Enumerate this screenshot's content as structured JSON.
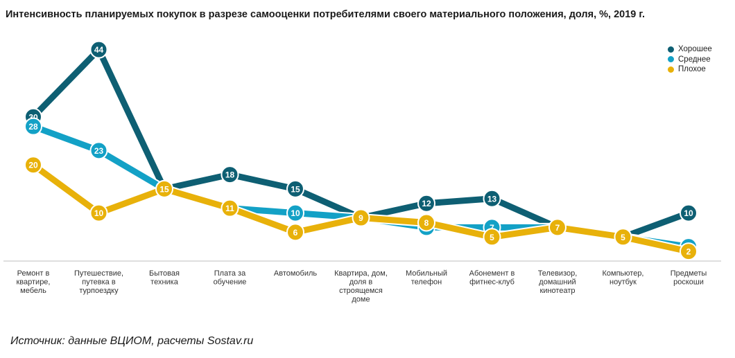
{
  "chart_data": {
    "type": "line",
    "title": "Интенсивность планируемых покупок в разрезе самооценки потребителями своего материального положения, доля, %, 2019 г.",
    "categories": [
      [
        "Ремонт в",
        "квартире,",
        "мебель"
      ],
      [
        "Путешествие,",
        "путевка в",
        "турпоездку"
      ],
      [
        "Бытовая",
        "техника"
      ],
      [
        "Плата за",
        "обучение"
      ],
      [
        "Автомобиль"
      ],
      [
        "Квартира, дом,",
        "доля в",
        "строящемся",
        "доме"
      ],
      [
        "Мобильный",
        "телефон"
      ],
      [
        "Абонемент в",
        "фитнес-клуб"
      ],
      [
        "Телевизор,",
        "домашний",
        "кинотеатр"
      ],
      [
        "Компьютер,",
        "ноутбук"
      ],
      [
        "Предметы",
        "роскоши"
      ]
    ],
    "series": [
      {
        "name": "Хорошее",
        "color": "#0e5f73",
        "values": [
          30,
          44,
          15,
          18,
          15,
          9,
          12,
          13,
          7,
          5,
          10
        ]
      },
      {
        "name": "Среднее",
        "color": "#13a1c6",
        "values": [
          28,
          23,
          15,
          11,
          10,
          9,
          7,
          7,
          7,
          5,
          3
        ]
      },
      {
        "name": "Плохое",
        "color": "#e8b10a",
        "values": [
          20,
          10,
          15,
          11,
          6,
          9,
          8,
          5,
          7,
          5,
          2
        ]
      }
    ],
    "ylim": [
      0,
      50
    ],
    "grid": false,
    "legend_position": "top-right",
    "data_labels": true
  },
  "source": "Источник: данные ВЦИОМ, расчеты Sostav.ru"
}
